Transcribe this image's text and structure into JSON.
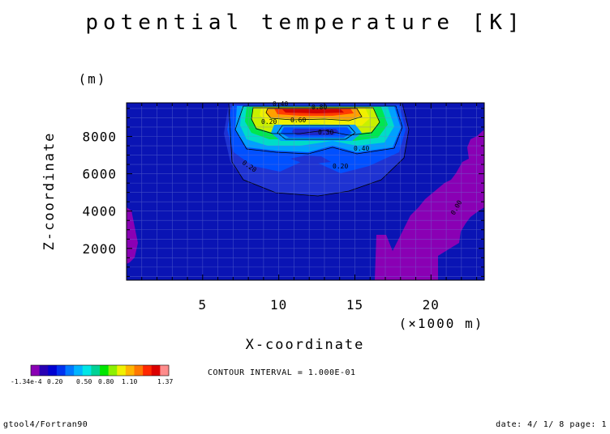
{
  "chart_data": {
    "type": "heatmap",
    "title": "potential temperature [K]",
    "xlabel": "X-coordinate",
    "ylabel": "Z-coordinate",
    "x_unit": "(×1000 m)",
    "y_unit": "(m)",
    "xlim": [
      0,
      23.5
    ],
    "ylim": [
      300,
      9800
    ],
    "x_ticks": [
      5,
      10,
      15,
      20
    ],
    "y_ticks": [
      2000,
      4000,
      6000,
      8000
    ],
    "x_tick_labels": [
      "5",
      "10",
      "15",
      "20"
    ],
    "y_tick_labels": [
      "2000",
      "4000",
      "6000",
      "8000"
    ],
    "grid": true,
    "contour_labels": [
      "0.40",
      "0.80",
      "0.60",
      "0.20",
      "0.30",
      "0.40",
      "0.20",
      "0.20",
      "0.00"
    ],
    "contour_interval": "CONTOUR INTERVAL = 1.000E-01",
    "colorbar_labels": [
      "-1.34e-4",
      "0.20",
      "0.50",
      "0.80",
      "1.10",
      "1.37"
    ],
    "colorbar_colors": [
      "#8a00b4",
      "#2800b4",
      "#0000d2",
      "#0032f0",
      "#0078ff",
      "#00b4ff",
      "#00e6e6",
      "#00d296",
      "#00e600",
      "#8cf000",
      "#f0f000",
      "#ffb400",
      "#ff7800",
      "#ff2800",
      "#dc0000",
      "#ff8c8c"
    ],
    "background_color": "#0a14b4"
  },
  "footer": {
    "left": "gtool4/Fortran90",
    "right": "date: 4/ 1/ 8 page: 1"
  }
}
